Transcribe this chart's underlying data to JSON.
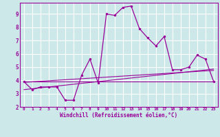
{
  "xlabel": "Windchill (Refroidissement éolien,°C)",
  "background_color": "#cce8e8",
  "grid_color": "#ffffff",
  "line_color": "#990099",
  "xlim": [
    -0.5,
    23.5
  ],
  "ylim": [
    2.0,
    9.85
  ],
  "yticks": [
    2,
    3,
    4,
    5,
    6,
    7,
    8,
    9
  ],
  "xticks": [
    0,
    1,
    2,
    3,
    4,
    5,
    6,
    7,
    8,
    9,
    10,
    11,
    12,
    13,
    14,
    15,
    16,
    17,
    18,
    19,
    20,
    21,
    22,
    23
  ],
  "main_x": [
    0,
    1,
    2,
    3,
    4,
    5,
    6,
    7,
    8,
    9,
    10,
    11,
    12,
    13,
    14,
    15,
    16,
    17,
    18,
    19,
    20,
    21,
    22,
    23
  ],
  "main_y": [
    3.9,
    3.3,
    3.5,
    3.5,
    3.5,
    2.5,
    2.5,
    4.4,
    5.6,
    3.8,
    9.0,
    8.9,
    9.5,
    9.6,
    7.9,
    7.2,
    6.6,
    7.3,
    4.8,
    4.8,
    5.0,
    5.9,
    5.6,
    3.9
  ],
  "line1_x": [
    0,
    23
  ],
  "line1_y": [
    3.9,
    3.9
  ],
  "line2_x": [
    0,
    23
  ],
  "line2_y": [
    3.85,
    4.75
  ],
  "line3_x": [
    0,
    23
  ],
  "line3_y": [
    3.3,
    4.85
  ]
}
